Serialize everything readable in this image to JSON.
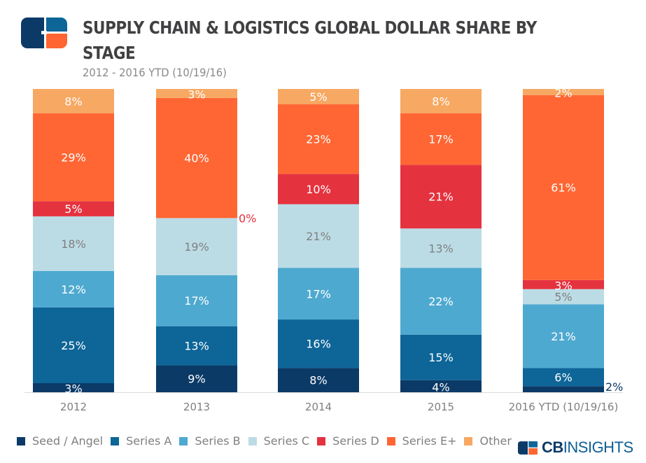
{
  "header": {
    "title": "SUPPLY CHAIN & LOGISTICS GLOBAL DOLLAR SHARE BY STAGE",
    "subtitle": "2012 - 2016 YTD (10/19/16)"
  },
  "brand": {
    "bold": "CB",
    "rest": "INSIGHTS"
  },
  "colors": {
    "logo_dark": "#0b3a67",
    "logo_mid": "#0d5f94",
    "logo_orange": "#ff6633"
  },
  "chart_data": {
    "type": "bar",
    "stacked": true,
    "normalized": true,
    "title": "SUPPLY CHAIN & LOGISTICS GLOBAL DOLLAR SHARE BY STAGE",
    "subtitle": "2012 - 2016 YTD (10/19/16)",
    "xlabel": "",
    "ylabel": "",
    "ylim": [
      0,
      100
    ],
    "grid": false,
    "legend": "bottom",
    "categories": [
      "2012",
      "2013",
      "2014",
      "2015",
      "2016 YTD (10/19/16)"
    ],
    "series": [
      {
        "name": "Seed / Angel",
        "color": "#0b3a67",
        "label_color": "#ffffff",
        "values": [
          3,
          9,
          8,
          4,
          2
        ],
        "labels": [
          "3%",
          "9%",
          "8%",
          "4%",
          "2%"
        ]
      },
      {
        "name": "Series A",
        "color": "#0d6598",
        "label_color": "#ffffff",
        "values": [
          25,
          13,
          16,
          15,
          6
        ],
        "labels": [
          "25%",
          "13%",
          "16%",
          "15%",
          "6%"
        ]
      },
      {
        "name": "Series B",
        "color": "#4ea9d0",
        "label_color": "#ffffff",
        "values": [
          12,
          17,
          17,
          22,
          21
        ],
        "labels": [
          "12%",
          "17%",
          "17%",
          "22%",
          "21%"
        ]
      },
      {
        "name": "Series C",
        "color": "#bcdce5",
        "label_color": "#808080",
        "values": [
          18,
          19,
          21,
          13,
          5
        ],
        "labels": [
          "18%",
          "19%",
          "21%",
          "13%",
          "5%"
        ]
      },
      {
        "name": "Series D",
        "color": "#e5323f",
        "label_color": "#ffffff",
        "values": [
          5,
          0,
          10,
          21,
          3
        ],
        "labels": [
          "5%",
          "0%",
          "10%",
          "21%",
          "3%"
        ]
      },
      {
        "name": "Series E+",
        "color": "#ff6633",
        "label_color": "#ffffff",
        "values": [
          29,
          40,
          23,
          17,
          61
        ],
        "labels": [
          "29%",
          "40%",
          "23%",
          "17%",
          "61%"
        ]
      },
      {
        "name": "Other",
        "color": "#f7a862",
        "label_color": "#ffffff",
        "values": [
          8,
          3,
          5,
          8,
          2
        ],
        "labels": [
          "8%",
          "3%",
          "5%",
          "8%",
          "2%"
        ]
      }
    ],
    "outside_labels": [
      {
        "category": "2013",
        "series": "Series D",
        "label": "0%",
        "color": "#e5323f"
      },
      {
        "category": "2016 YTD (10/19/16)",
        "series": "Seed / Angel",
        "label": "2%",
        "color": "#0b3a67"
      }
    ]
  }
}
